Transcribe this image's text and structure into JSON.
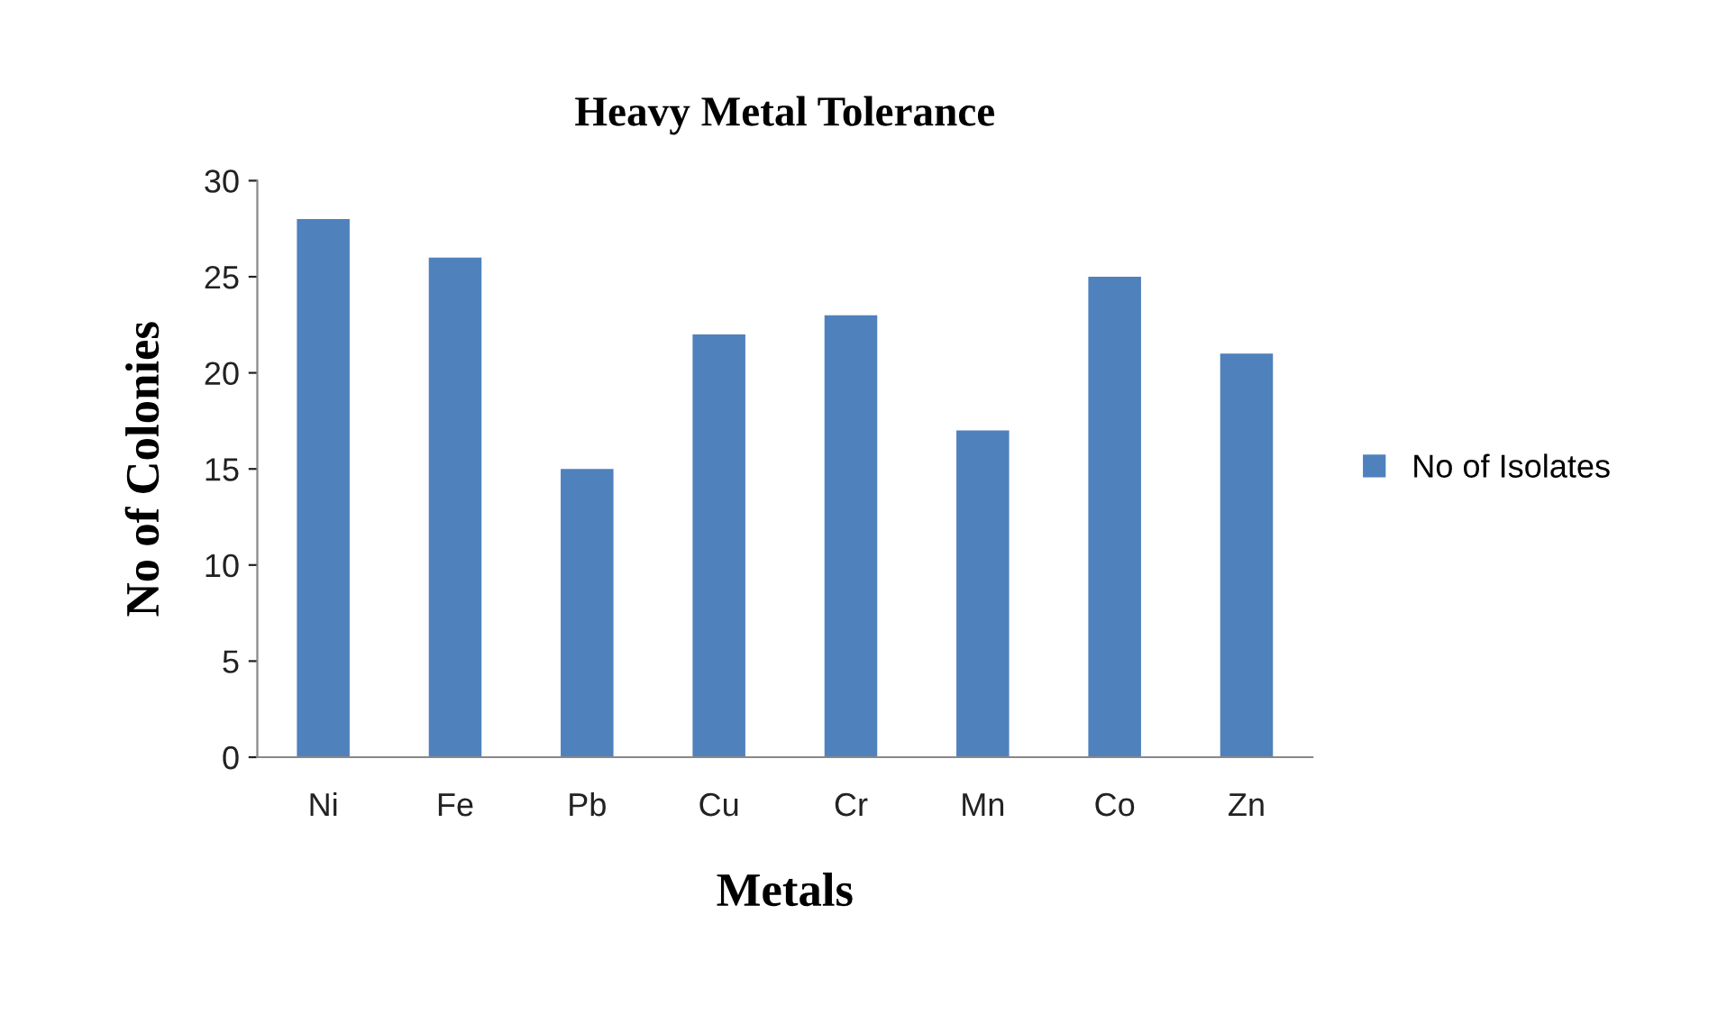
{
  "chart_data": {
    "type": "bar",
    "title": "Heavy Metal Tolerance",
    "xlabel": "Metals",
    "ylabel": "No of Colonies",
    "categories": [
      "Ni",
      "Fe",
      "Pb",
      "Cu",
      "Cr",
      "Mn",
      "Co",
      "Zn"
    ],
    "series": [
      {
        "name": "No of Isolates",
        "color": "#4f81bd",
        "values": [
          28,
          26,
          15,
          22,
          23,
          17,
          25,
          21
        ]
      }
    ],
    "ylim": [
      0,
      30
    ],
    "yticks": [
      0,
      5,
      10,
      15,
      20,
      25,
      30
    ],
    "grid": false,
    "legend": "right"
  }
}
